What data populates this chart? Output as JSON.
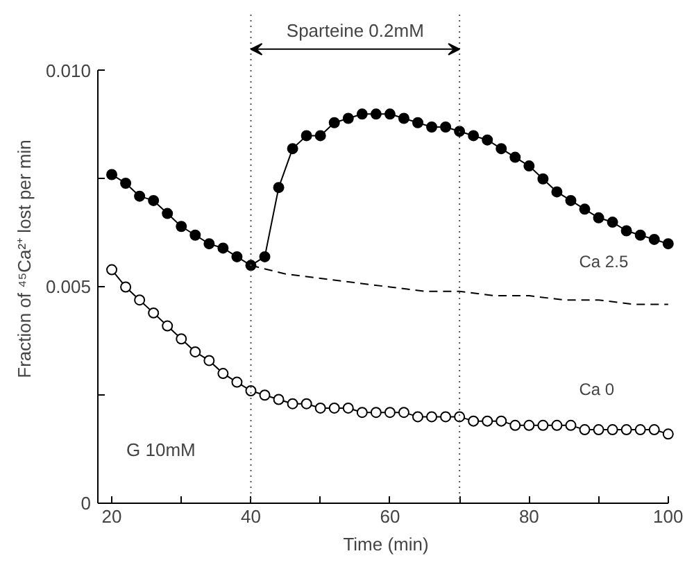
{
  "chart_data": {
    "type": "line",
    "xlabel": "Time (min)",
    "ylabel": "Fraction of ⁴⁵Ca²⁺ lost per min",
    "xlim": [
      18,
      100
    ],
    "ylim": [
      0,
      0.01
    ],
    "xticks": [
      20,
      {
        "value": 30,
        "label": null
      },
      40,
      {
        "value": 50,
        "label": null
      },
      60,
      {
        "value": 70,
        "label": null
      },
      80,
      {
        "value": 90,
        "label": null
      },
      100
    ],
    "yticks": [
      {
        "value": 0,
        "label": "0"
      },
      {
        "value": 0.0025,
        "label": null
      },
      {
        "value": 0.005,
        "label": "0.005"
      },
      {
        "value": 0.0075,
        "label": null
      },
      {
        "value": 0.01,
        "label": "0.010"
      }
    ],
    "grid": false,
    "series": [
      {
        "name": "Ca 2.5",
        "color": "#000000",
        "marker": "circle",
        "x": [
          20,
          22,
          24,
          26,
          28,
          30,
          32,
          34,
          36,
          38,
          40,
          42,
          44,
          46,
          48,
          50,
          52,
          54,
          56,
          58,
          60,
          62,
          64,
          66,
          68,
          70,
          72,
          74,
          76,
          78,
          80,
          82,
          84,
          86,
          88,
          90,
          92,
          94,
          96,
          98,
          100
        ],
        "values": [
          0.0076,
          0.0074,
          0.0071,
          0.007,
          0.0067,
          0.0064,
          0.0062,
          0.006,
          0.0059,
          0.0057,
          0.0055,
          0.0057,
          0.0073,
          0.0082,
          0.0085,
          0.0085,
          0.0088,
          0.0089,
          0.009,
          0.009,
          0.009,
          0.0089,
          0.0088,
          0.0087,
          0.0087,
          0.0086,
          0.0085,
          0.0084,
          0.0082,
          0.008,
          0.0078,
          0.0075,
          0.0072,
          0.007,
          0.0068,
          0.0066,
          0.0065,
          0.0063,
          0.0062,
          0.0061,
          0.006
        ]
      },
      {
        "name": "Ca 0",
        "color": "#000000",
        "marker": "circle",
        "x": [
          20,
          22,
          24,
          26,
          28,
          30,
          32,
          34,
          36,
          38,
          40,
          42,
          44,
          46,
          48,
          50,
          52,
          54,
          56,
          58,
          60,
          62,
          64,
          66,
          68,
          70,
          72,
          74,
          76,
          78,
          80,
          82,
          84,
          86,
          88,
          90,
          92,
          94,
          96,
          98,
          100
        ],
        "values": [
          0.0054,
          0.005,
          0.0047,
          0.0044,
          0.0041,
          0.0038,
          0.0035,
          0.0033,
          0.003,
          0.0028,
          0.0026,
          0.0025,
          0.0024,
          0.0023,
          0.0023,
          0.0022,
          0.0022,
          0.0022,
          0.0021,
          0.0021,
          0.0021,
          0.0021,
          0.002,
          0.002,
          0.002,
          0.002,
          0.0019,
          0.0019,
          0.0019,
          0.0018,
          0.0018,
          0.0018,
          0.0018,
          0.0018,
          0.0017,
          0.0017,
          0.0017,
          0.0017,
          0.0017,
          0.0017,
          0.0016
        ]
      },
      {
        "color": "#000000",
        "marker": "none",
        "line_style": "dashed",
        "x": [
          40,
          45,
          50,
          55,
          60,
          65,
          70,
          75,
          80,
          85,
          90,
          95,
          100
        ],
        "values": [
          0.0055,
          0.0053,
          0.0052,
          0.0051,
          0.005,
          0.0049,
          0.0049,
          0.0048,
          0.0048,
          0.0047,
          0.0047,
          0.0046,
          0.0046
        ]
      }
    ],
    "ref_lines": [
      {
        "axis": "x",
        "value": 40,
        "line_style": "dotted"
      },
      {
        "axis": "x",
        "value": 70,
        "line_style": "dotted"
      }
    ],
    "annotations": [
      "Sparteine 0.2mM",
      "G 10mM"
    ]
  }
}
